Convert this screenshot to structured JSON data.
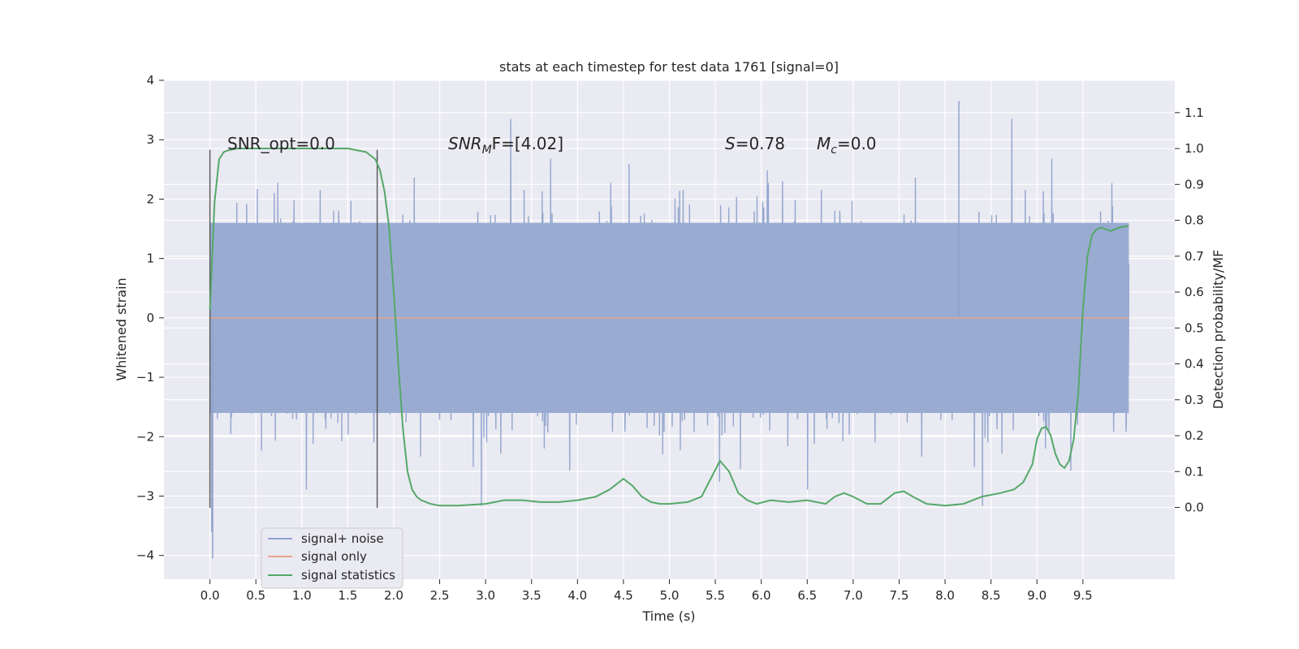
{
  "chart_data": {
    "type": "line",
    "title": "stats at each timestep for test data 1761 [signal=0]",
    "xlabel": "Time (s)",
    "ylabel": "Whitened strain",
    "y2label": "Detection probability/MF",
    "xlim": [
      -0.5,
      10.5
    ],
    "ylim": [
      -4.4,
      4.0
    ],
    "y2lim": [
      -0.2,
      1.19
    ],
    "x_ticks": [
      "0.0",
      "0.5",
      "1.0",
      "1.5",
      "2.0",
      "2.5",
      "3.0",
      "3.5",
      "4.0",
      "4.5",
      "5.0",
      "5.5",
      "6.0",
      "6.5",
      "7.0",
      "7.5",
      "8.0",
      "8.5",
      "9.0",
      "9.5"
    ],
    "y_ticks": [
      "4",
      "3",
      "2",
      "1",
      "0",
      "−1",
      "−2",
      "−3",
      "−4"
    ],
    "y2_ticks": [
      "1.1",
      "1.0",
      "0.9",
      "0.8",
      "0.7",
      "0.6",
      "0.5",
      "0.4",
      "0.3",
      "0.2",
      "0.1",
      "0.0"
    ],
    "grid": true,
    "legend_position": "lower-left",
    "legend": [
      {
        "name": "signal+ noise",
        "color": "#8fa3cc"
      },
      {
        "name": "signal only",
        "color": "#e8a58a"
      },
      {
        "name": "signal statistics",
        "color": "#55a868"
      }
    ],
    "annotations": {
      "snr_opt": "SNR_opt=0.0",
      "snr_mf_base": "SNR",
      "snr_mf_sub": "M",
      "snr_mf_rest": "F=[4.02]",
      "s_base": "S",
      "s_rest": "=0.78",
      "mc_base": "M",
      "mc_sub": "c",
      "mc_rest": "=0.0"
    },
    "vertical_markers": [
      0.0,
      1.82
    ],
    "noise": {
      "x_range": [
        0.0,
        10.0
      ],
      "typical_envelope": [
        -1.6,
        1.6
      ],
      "extrema": [
        -4.05,
        3.65
      ]
    },
    "signal_only": {
      "x_range": [
        0.0,
        10.0
      ],
      "value": 0.0
    },
    "statistics": {
      "x": [
        0.0,
        0.05,
        0.1,
        0.15,
        0.2,
        0.3,
        0.5,
        1.0,
        1.5,
        1.7,
        1.8,
        1.85,
        1.9,
        1.95,
        2.0,
        2.05,
        2.1,
        2.15,
        2.2,
        2.25,
        2.3,
        2.4,
        2.5,
        2.7,
        3.0,
        3.2,
        3.4,
        3.6,
        3.8,
        4.0,
        4.2,
        4.35,
        4.5,
        4.6,
        4.7,
        4.8,
        4.9,
        5.0,
        5.2,
        5.35,
        5.45,
        5.55,
        5.65,
        5.75,
        5.85,
        5.95,
        6.1,
        6.3,
        6.5,
        6.7,
        6.8,
        6.9,
        7.0,
        7.15,
        7.3,
        7.45,
        7.55,
        7.65,
        7.8,
        8.0,
        8.2,
        8.4,
        8.6,
        8.75,
        8.85,
        8.95,
        9.0,
        9.05,
        9.1,
        9.15,
        9.2,
        9.25,
        9.3,
        9.35,
        9.4,
        9.45,
        9.5,
        9.55,
        9.6,
        9.65,
        9.7,
        9.75,
        9.8,
        9.9,
        10.0
      ],
      "y": [
        0.55,
        0.85,
        0.97,
        0.99,
        0.995,
        1.0,
        1.0,
        1.0,
        1.0,
        0.99,
        0.97,
        0.94,
        0.88,
        0.78,
        0.6,
        0.4,
        0.22,
        0.1,
        0.05,
        0.03,
        0.02,
        0.01,
        0.005,
        0.005,
        0.01,
        0.02,
        0.02,
        0.015,
        0.015,
        0.02,
        0.03,
        0.05,
        0.08,
        0.06,
        0.03,
        0.015,
        0.01,
        0.01,
        0.015,
        0.03,
        0.08,
        0.13,
        0.1,
        0.04,
        0.02,
        0.01,
        0.02,
        0.015,
        0.02,
        0.01,
        0.03,
        0.04,
        0.03,
        0.01,
        0.01,
        0.04,
        0.045,
        0.03,
        0.01,
        0.005,
        0.01,
        0.03,
        0.04,
        0.05,
        0.07,
        0.12,
        0.19,
        0.22,
        0.225,
        0.2,
        0.15,
        0.12,
        0.11,
        0.13,
        0.19,
        0.32,
        0.55,
        0.7,
        0.76,
        0.775,
        0.78,
        0.775,
        0.77,
        0.78,
        0.785
      ]
    }
  }
}
